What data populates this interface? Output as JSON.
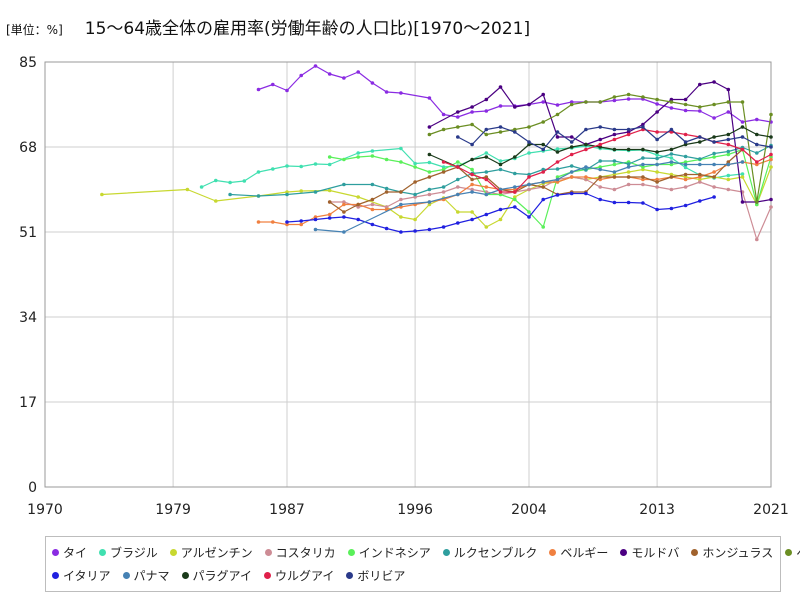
{
  "header": {
    "unit": "[単位：%]",
    "title": "15～64歳全体の雇用率(労働年齢の人口比)[1970～2021]"
  },
  "chart_data": {
    "type": "line",
    "title": "15～64歳全体の雇用率(労働年齢の人口比)[1970～2021]",
    "unit_label": "[単位：%]",
    "xlim": [
      1970,
      2021
    ],
    "ylim": [
      0,
      85
    ],
    "x_ticks": [
      1970,
      1979,
      1987,
      1996,
      2004,
      2013,
      2021
    ],
    "y_ticks": [
      0,
      17,
      34,
      51,
      68,
      85
    ],
    "grid": true,
    "legend_position": "bottom",
    "series": [
      {
        "name": "タイ",
        "color": "#8a2be2",
        "x": [
          1985,
          1986,
          1987,
          1988,
          1989,
          1990,
          1991,
          1992,
          1993,
          1994,
          1995,
          1997,
          1998,
          1999,
          2000,
          2001,
          2002,
          2003,
          2004,
          2005,
          2006,
          2007,
          2008,
          2009,
          2010,
          2011,
          2012,
          2013,
          2014,
          2015,
          2016,
          2017,
          2018,
          2019,
          2020,
          2021
        ],
        "y": [
          79.5,
          80.5,
          79.3,
          82.3,
          84.2,
          82.6,
          81.8,
          83.0,
          80.8,
          79.0,
          78.8,
          77.8,
          74.5,
          74.0,
          75.0,
          75.2,
          76.2,
          76.2,
          76.5,
          77.0,
          76.4,
          77.0,
          77.0,
          77.0,
          77.3,
          77.6,
          77.6,
          76.6,
          75.8,
          75.3,
          75.2,
          73.8,
          75.0,
          73.0,
          73.5,
          73.0
        ]
      },
      {
        "name": "ブラジル",
        "color": "#40e0b0",
        "x": [
          1981,
          1982,
          1983,
          1984,
          1985,
          1986,
          1987,
          1988,
          1989,
          1990,
          1992,
          1993,
          1995,
          1996,
          1997,
          1998,
          1999,
          2001,
          2002,
          2003,
          2004,
          2005,
          2006,
          2007,
          2008,
          2009,
          2010,
          2011,
          2012,
          2013,
          2014,
          2015,
          2016,
          2017,
          2018,
          2019
        ],
        "y": [
          60.0,
          61.3,
          60.9,
          61.2,
          63.0,
          63.6,
          64.2,
          64.1,
          64.6,
          64.5,
          66.8,
          67.2,
          67.7,
          64.7,
          64.9,
          64.0,
          64.2,
          66.8,
          65.2,
          65.7,
          66.8,
          67.2,
          67.6,
          67.8,
          68.2,
          67.7,
          67.4,
          67.3,
          67.4,
          66.4,
          65.8,
          63.9,
          62.4,
          61.8,
          62.3,
          62.6
        ]
      },
      {
        "name": "アルゼンチン",
        "color": "#c8d830",
        "x": [
          1974,
          1980,
          1982,
          1985,
          1987,
          1988,
          1990,
          1992,
          1994,
          1995,
          1996,
          1997,
          1998,
          1999,
          2000,
          2001,
          2002,
          2003,
          2004,
          2005,
          2006,
          2007,
          2008,
          2009,
          2010,
          2011,
          2012,
          2013,
          2014,
          2015,
          2016,
          2017,
          2018,
          2019,
          2020,
          2021
        ],
        "y": [
          58.5,
          59.5,
          57.2,
          58.2,
          59.0,
          59.2,
          59.3,
          58.0,
          56.0,
          54.0,
          53.5,
          56.5,
          57.8,
          55.0,
          55.0,
          52.0,
          53.5,
          58.0,
          59.5,
          60.7,
          61.0,
          62.0,
          61.5,
          62.0,
          62.5,
          63.0,
          63.5,
          63.0,
          62.5,
          62.0,
          61.5,
          62.0,
          61.5,
          62.0,
          56.5,
          64.0
        ]
      },
      {
        "name": "コスタリカ",
        "color": "#cd8c95",
        "x": [
          1990,
          1991,
          1992,
          1993,
          1994,
          1995,
          1996,
          1997,
          1998,
          1999,
          2000,
          2001,
          2002,
          2003,
          2004,
          2005,
          2006,
          2007,
          2008,
          2009,
          2010,
          2011,
          2012,
          2013,
          2014,
          2015,
          2016,
          2017,
          2018,
          2019,
          2020,
          2021
        ],
        "y": [
          57.0,
          57.0,
          56.0,
          56.5,
          56.0,
          57.5,
          58.0,
          58.5,
          59.0,
          60.0,
          59.5,
          59.0,
          58.5,
          59.0,
          59.5,
          60.0,
          61.5,
          62.0,
          61.5,
          60.0,
          59.5,
          60.5,
          60.5,
          60.0,
          59.5,
          60.0,
          61.0,
          60.0,
          59.5,
          59.0,
          49.5,
          56.0
        ]
      },
      {
        "name": "インドネシア",
        "color": "#5af05a",
        "x": [
          1990,
          1991,
          1992,
          1993,
          1994,
          1995,
          1996,
          1997,
          1998,
          1999,
          2000,
          2001,
          2002,
          2003,
          2004,
          2005,
          2006,
          2007,
          2008,
          2009,
          2010,
          2011,
          2012,
          2013,
          2014,
          2015,
          2016,
          2017,
          2018,
          2019,
          2020,
          2021
        ],
        "y": [
          66.0,
          65.5,
          66.0,
          66.2,
          65.5,
          65.0,
          64.0,
          63.0,
          63.5,
          65.0,
          63.5,
          58.5,
          58.5,
          57.5,
          55.0,
          52.0,
          62.0,
          63.0,
          63.5,
          64.0,
          64.5,
          65.0,
          64.0,
          64.5,
          64.5,
          65.0,
          65.5,
          66.0,
          66.5,
          67.5,
          56.5,
          66.0
        ]
      },
      {
        "name": "ルクセンブルク",
        "color": "#2e9e9e",
        "x": [
          1983,
          1985,
          1987,
          1989,
          1991,
          1993,
          1994,
          1995,
          1996,
          1997,
          1998,
          1999,
          2000,
          2001,
          2002,
          2003,
          2004,
          2005,
          2006,
          2007,
          2008,
          2009,
          2010,
          2011,
          2012,
          2013,
          2014,
          2015,
          2016,
          2017,
          2018,
          2019,
          2020,
          2021
        ],
        "y": [
          58.5,
          58.2,
          58.5,
          59.0,
          60.5,
          60.5,
          59.7,
          59.0,
          58.5,
          59.5,
          60.0,
          61.5,
          62.7,
          63.0,
          63.5,
          62.7,
          62.5,
          63.5,
          63.6,
          64.2,
          63.4,
          65.2,
          65.2,
          64.6,
          65.8,
          65.7,
          66.6,
          66.1,
          65.6,
          66.7,
          67.1,
          67.9,
          66.8,
          68.3
        ]
      },
      {
        "name": "ベルギー",
        "color": "#f08040",
        "x": [
          1985,
          1986,
          1987,
          1988,
          1989,
          1990,
          1991,
          1992,
          1993,
          1994,
          1995,
          1996,
          1997,
          1998,
          1999,
          2000,
          2001,
          2002,
          2003,
          2004,
          2005,
          2006,
          2007,
          2008,
          2009,
          2010,
          2011,
          2012,
          2013,
          2014,
          2015,
          2016,
          2017,
          2018,
          2019,
          2020,
          2021
        ],
        "y": [
          53.0,
          53.0,
          52.5,
          52.5,
          54.0,
          54.5,
          56.5,
          56.5,
          55.5,
          55.5,
          56.0,
          56.5,
          57.0,
          57.5,
          58.5,
          60.5,
          60.0,
          59.5,
          59.5,
          60.5,
          61.0,
          61.0,
          62.0,
          62.0,
          61.5,
          62.0,
          62.0,
          61.5,
          61.5,
          62.0,
          61.5,
          62.0,
          63.0,
          64.5,
          65.0,
          64.5,
          65.5
        ]
      },
      {
        "name": "モルドバ",
        "color": "#4b0082",
        "x": [
          1997,
          1999,
          2000,
          2001,
          2002,
          2003,
          2004,
          2005,
          2006,
          2007,
          2008,
          2009,
          2010,
          2011,
          2012,
          2013,
          2014,
          2015,
          2016,
          2017,
          2018,
          2019,
          2020,
          2021
        ],
        "y": [
          72.0,
          75.0,
          76.0,
          77.5,
          80.0,
          76.0,
          76.5,
          78.5,
          70.0,
          70.0,
          68.5,
          69.5,
          70.5,
          71.0,
          72.5,
          75.0,
          77.5,
          77.5,
          80.5,
          81.0,
          79.5,
          57.0,
          57.0,
          57.5
        ]
      },
      {
        "name": "ホンジュラス",
        "color": "#a0622d",
        "x": [
          1990,
          1991,
          1992,
          1993,
          1994,
          1995,
          1996,
          1997,
          1998,
          1999,
          2000,
          2001,
          2002,
          2003,
          2004,
          2005,
          2006,
          2007,
          2008,
          2009,
          2010,
          2011,
          2012,
          2013,
          2014,
          2015,
          2016,
          2017,
          2018,
          2019
        ],
        "y": [
          57.0,
          55.0,
          56.5,
          57.5,
          59.0,
          59.0,
          61.0,
          62.0,
          63.0,
          64.0,
          61.5,
          62.0,
          59.5,
          59.0,
          60.5,
          60.0,
          58.5,
          59.0,
          59.0,
          62.0,
          62.0,
          62.0,
          62.0,
          61.0,
          62.0,
          62.5,
          62.5,
          62.0,
          65.0,
          67.5
        ]
      },
      {
        "name": "ペルー",
        "color": "#6b8e23",
        "x": [
          1997,
          1998,
          1999,
          2000,
          2001,
          2002,
          2003,
          2004,
          2005,
          2006,
          2007,
          2008,
          2009,
          2010,
          2011,
          2012,
          2013,
          2014,
          2015,
          2016,
          2017,
          2018,
          2019,
          2020,
          2021
        ],
        "y": [
          70.5,
          71.5,
          72.0,
          72.5,
          70.5,
          71.0,
          71.5,
          72.0,
          73.0,
          74.5,
          76.5,
          77.0,
          77.0,
          78.0,
          78.5,
          78.0,
          77.5,
          77.0,
          76.5,
          76.0,
          76.5,
          77.0,
          77.0,
          57.0,
          74.5
        ]
      },
      {
        "name": "イタリア",
        "color": "#2020e0",
        "x": [
          1987,
          1988,
          1989,
          1990,
          1991,
          1992,
          1993,
          1994,
          1995,
          1996,
          1997,
          1998,
          1999,
          2000,
          2001,
          2002,
          2003,
          2004,
          2005,
          2006,
          2007,
          2008,
          2009,
          2010,
          2011,
          2012,
          2013,
          2014,
          2015,
          2016,
          2017
        ],
        "y": [
          53.0,
          53.2,
          53.5,
          53.8,
          54.0,
          53.5,
          52.5,
          51.7,
          51.0,
          51.2,
          51.5,
          52.0,
          52.8,
          53.5,
          54.5,
          55.5,
          56.0,
          54.0,
          57.5,
          58.4,
          58.7,
          58.7,
          57.5,
          56.9,
          56.9,
          56.8,
          55.5,
          55.7,
          56.3,
          57.2,
          58.0
        ]
      },
      {
        "name": "パナマ",
        "color": "#4682b4",
        "x": [
          1989,
          1991,
          1995,
          1997,
          1999,
          2000,
          2001,
          2002,
          2003,
          2004,
          2005,
          2006,
          2007,
          2008,
          2009,
          2010,
          2011,
          2012,
          2013,
          2014,
          2015,
          2016,
          2017,
          2018,
          2019
        ],
        "y": [
          51.5,
          51.0,
          56.5,
          57.0,
          58.5,
          59.0,
          58.5,
          59.5,
          60.0,
          60.5,
          61.0,
          61.5,
          63.0,
          64.0,
          63.5,
          63.0,
          64.0,
          64.5,
          64.5,
          65.0,
          64.5,
          64.5,
          64.5,
          64.5,
          65.0
        ]
      },
      {
        "name": "パラグアイ",
        "color": "#1a3a1a",
        "x": [
          1997,
          1999,
          2000,
          2001,
          2002,
          2003,
          2004,
          2005,
          2006,
          2007,
          2008,
          2009,
          2010,
          2011,
          2012,
          2013,
          2014,
          2015,
          2016,
          2017,
          2018,
          2019,
          2020,
          2021
        ],
        "y": [
          66.5,
          64.0,
          65.5,
          66.0,
          64.5,
          66.0,
          68.5,
          68.5,
          67.0,
          68.0,
          68.5,
          68.0,
          67.5,
          67.5,
          67.5,
          67.0,
          67.5,
          68.5,
          69.0,
          70.0,
          70.5,
          72.0,
          70.5,
          70.0
        ]
      },
      {
        "name": "ウルグアイ",
        "color": "#e0204a",
        "x": [
          1998,
          1999,
          2000,
          2001,
          2002,
          2003,
          2004,
          2005,
          2006,
          2007,
          2008,
          2009,
          2010,
          2011,
          2012,
          2013,
          2014,
          2015,
          2016,
          2017,
          2018,
          2019,
          2020,
          2021
        ],
        "y": [
          65.0,
          64.0,
          62.5,
          61.5,
          59.0,
          59.0,
          62.0,
          63.0,
          65.0,
          66.5,
          67.5,
          68.5,
          69.5,
          70.5,
          71.5,
          71.0,
          71.0,
          70.5,
          70.0,
          69.0,
          68.5,
          67.5,
          65.0,
          66.5
        ]
      },
      {
        "name": "ボリビア",
        "color": "#2a3a8a",
        "x": [
          1999,
          2000,
          2001,
          2002,
          2003,
          2004,
          2005,
          2006,
          2007,
          2008,
          2009,
          2010,
          2011,
          2012,
          2013,
          2014,
          2015,
          2016,
          2017,
          2018,
          2019,
          2020,
          2021
        ],
        "y": [
          70.0,
          68.5,
          71.5,
          72.0,
          71.0,
          69.0,
          67.5,
          71.0,
          69.0,
          71.5,
          72.0,
          71.5,
          71.5,
          72.0,
          69.5,
          71.5,
          69.0,
          70.0,
          69.0,
          69.5,
          70.0,
          68.5,
          68.0
        ]
      }
    ]
  }
}
